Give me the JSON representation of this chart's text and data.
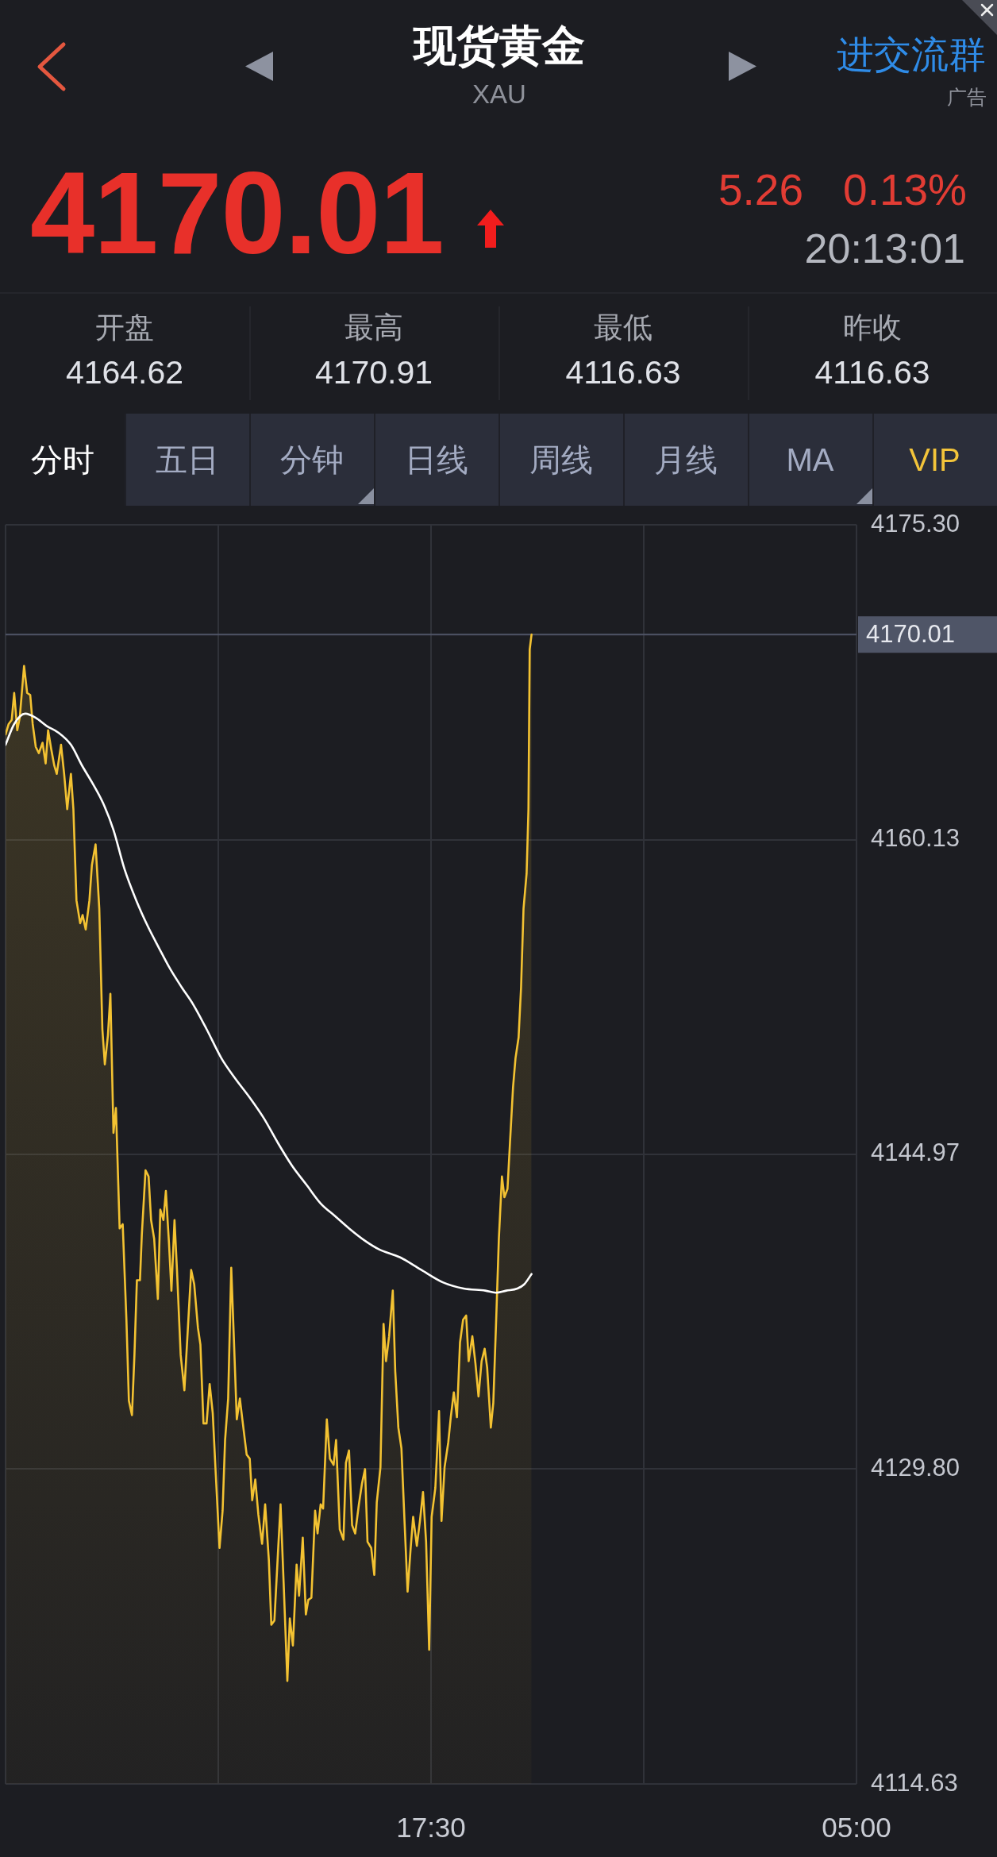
{
  "chart_data": {
    "type": "area",
    "title": "现货黄金",
    "subtitle": "XAU",
    "series": [
      {
        "color": "#f3c232",
        "x": [
          "--01-01T06:00",
          "--01-01T06:05",
          "--01-01T06:10",
          "--01-01T06:14",
          "--01-01T06:19",
          "--01-01T06:23",
          "--01-01T06:30",
          "--01-01T06:35",
          "--01-01T06:40",
          "--01-01T06:44",
          "--01-01T06:49",
          "--01-01T06:54",
          "--01-01T07:00",
          "--01-01T07:05",
          "--01-01T07:09",
          "--01-01T07:14",
          "--01-01T07:19",
          "--01-01T07:23",
          "--01-01T07:30",
          "--01-01T07:35",
          "--01-01T07:40",
          "--01-01T07:46",
          "--01-01T07:50",
          "--01-01T07:55",
          "--01-01T08:01",
          "--01-01T08:05",
          "--01-01T08:10",
          "--01-01T08:16",
          "--01-01T08:20",
          "--01-01T08:26",
          "--01-01T08:32",
          "--01-01T08:37",
          "--01-01T08:41",
          "--01-01T08:46",
          "--01-01T08:50",
          "--01-01T08:55",
          "--01-01T08:59",
          "--01-01T09:05",
          "--01-01T09:10",
          "--01-01T09:16",
          "--01-01T09:20",
          "--01-01T09:25",
          "--01-01T09:29",
          "--01-01T09:33",
          "--01-01T09:38",
          "--01-01T09:41",
          "--01-01T09:47",
          "--01-01T09:52",
          "--01-01T09:56",
          "--01-01T10:01",
          "--01-01T10:07",
          "--01-01T10:11",
          "--01-01T10:16",
          "--01-01T10:20",
          "--01-01T10:25",
          "--01-01T10:29",
          "--01-01T10:34",
          "--01-01T10:38",
          "--01-01T10:44",
          "--01-01T10:50",
          "--01-01T11:01",
          "--01-01T11:06",
          "--01-01T11:12",
          "--01-01T11:16",
          "--01-01T11:21",
          "--01-01T11:26",
          "--01-01T11:31",
          "--01-01T11:36",
          "--01-01T11:41",
          "--01-01T11:47",
          "--01-01T11:52",
          "--01-01T11:56",
          "--01-01T12:01",
          "--01-01T12:06",
          "--01-01T12:10",
          "--01-01T12:15",
          "--01-01T12:20",
          "--01-01T12:24",
          "--01-01T12:31",
          "--01-01T12:36",
          "--01-01T12:40",
          "--01-01T12:45",
          "--01-01T12:50",
          "--01-01T12:56",
          "--01-01T13:01",
          "--01-01T13:07",
          "--01-01T13:11",
          "--01-01T13:16",
          "--01-01T13:22",
          "--01-01T13:26",
          "--01-01T13:31",
          "--01-01T13:37",
          "--01-01T13:41",
          "--01-01T13:46",
          "--01-01T13:52",
          "--01-01T13:56",
          "--01-01T14:02",
          "--01-01T14:07",
          "--01-01T14:11",
          "--01-01T14:16",
          "--01-01T14:22",
          "--01-01T14:26",
          "--01-01T14:31",
          "--01-01T14:35",
          "--01-01T14:41",
          "--01-01T14:46",
          "--01-01T14:52",
          "--01-01T14:56",
          "--01-01T15:02",
          "--01-01T15:08",
          "--01-01T15:12",
          "--01-01T15:17",
          "--01-01T15:22",
          "--01-01T15:27",
          "--01-01T15:33",
          "--01-01T15:38",
          "--01-01T15:43",
          "--01-01T15:47",
          "--01-01T15:53",
          "--01-01T15:58",
          "--01-01T16:02",
          "--01-01T16:08",
          "--01-01T16:13",
          "--01-01T16:17",
          "--01-01T16:22",
          "--01-01T16:28",
          "--01-01T16:32",
          "--01-01T16:37",
          "--01-01T16:42",
          "--01-01T16:47",
          "--01-01T16:52",
          "--01-01T16:57",
          "--01-01T17:01",
          "--01-01T17:07",
          "--01-01T17:12",
          "--01-01T17:17",
          "--01-01T17:22",
          "--01-01T17:27",
          "--01-01T17:31",
          "--01-01T17:37",
          "--01-01T17:43",
          "--01-01T17:47",
          "--01-01T17:52",
          "--01-01T17:58",
          "--01-01T18:02",
          "--01-01T18:07",
          "--01-01T18:12",
          "--01-01T18:17",
          "--01-01T18:22",
          "--01-01T18:27",
          "--01-01T18:31",
          "--01-01T18:37",
          "--01-01T18:42",
          "--01-01T18:47",
          "--01-01T18:52",
          "--01-01T18:57",
          "--01-01T19:01",
          "--01-01T19:07",
          "--01-01T19:11",
          "--01-01T19:16",
          "--01-01T19:20",
          "--01-01T19:25",
          "--01-01T19:29",
          "--01-01T19:34",
          "--01-01T19:38",
          "--01-01T19:43",
          "--01-01T19:47",
          "--01-01T19:52",
          "--01-01T19:56",
          "--01-01T20:00",
          "--01-01T20:05",
          "--01-01T20:08",
          "--01-01T20:10",
          "--01-01T20:13"
        ],
        "values": [
          4165.2,
          4165.7,
          4165.9,
          4167.2,
          4165.4,
          4166.0,
          4168.5,
          4167.2,
          4167.1,
          4165.7,
          4164.6,
          4164.3,
          4164.8,
          4163.8,
          4165.4,
          4164.5,
          4163.7,
          4163.3,
          4164.7,
          4163.3,
          4161.6,
          4163.3,
          4161.6,
          4157.2,
          4156.1,
          4156.5,
          4155.8,
          4157.2,
          4158.9,
          4159.9,
          4156.8,
          4151.0,
          4149.3,
          4150.7,
          4152.7,
          4146.0,
          4147.2,
          4141.4,
          4141.6,
          4137.0,
          4133.1,
          4132.4,
          4135.3,
          4138.9,
          4138.9,
          4141.1,
          4144.2,
          4143.9,
          4141.8,
          4140.9,
          4138.0,
          4142.3,
          4141.8,
          4143.2,
          4140.7,
          4138.4,
          4141.8,
          4139.4,
          4135.3,
          4133.6,
          4139.4,
          4138.7,
          4136.6,
          4135.8,
          4132.0,
          4132.0,
          4133.9,
          4132.5,
          4129.5,
          4126.0,
          4127.8,
          4131.2,
          4133.2,
          4139.5,
          4136.3,
          4132.2,
          4133.2,
          4132.2,
          4130.5,
          4130.3,
          4128.3,
          4129.3,
          4127.6,
          4126.2,
          4128.1,
          4125.4,
          4122.3,
          4122.5,
          4125.9,
          4128.1,
          4124.3,
          4119.6,
          4122.6,
          4121.3,
          4125.2,
          4123.7,
          4126.5,
          4122.8,
          4123.5,
          4123.6,
          4127.8,
          4126.7,
          4128.1,
          4127.9,
          4132.2,
          4130.3,
          4130.0,
          4131.2,
          4126.9,
          4126.4,
          4130.1,
          4130.7,
          4127.1,
          4126.7,
          4128.1,
          4129.1,
          4129.8,
          4126.3,
          4126.0,
          4124.7,
          4128.2,
          4129.9,
          4136.8,
          4135.0,
          4136.2,
          4138.4,
          4134.5,
          4131.8,
          4130.8,
          4127.3,
          4123.9,
          4126.0,
          4127.5,
          4126.1,
          4127.3,
          4128.7,
          4126.3,
          4121.1,
          4127.5,
          4128.9,
          4132.6,
          4127.3,
          4129.9,
          4131.1,
          4132.3,
          4133.5,
          4132.3,
          4135.9,
          4137.0,
          4137.2,
          4135.0,
          4136.2,
          4134.9,
          4133.3,
          4135.0,
          4135.6,
          4134.7,
          4131.8,
          4133.0,
          4137.3,
          4140.9,
          4143.9,
          4142.9,
          4143.3,
          4145.5,
          4148.2,
          4149.6,
          4150.6,
          4153.0,
          4156.8,
          4158.5,
          4161.6,
          4169.3,
          4170.01
        ]
      },
      {
        "type": "line",
        "color": "#ffffff",
        "x": [
          "--01-01T06:00",
          "--01-01T06:14",
          "--01-01T06:32",
          "--01-01T06:49",
          "--01-01T07:07",
          "--01-01T07:25",
          "--01-01T07:46",
          "--01-01T08:04",
          "--01-01T08:20",
          "--01-01T08:38",
          "--01-01T08:55",
          "--01-01T09:13",
          "--01-01T09:32",
          "--01-01T09:50",
          "--01-01T10:09",
          "--01-01T10:27",
          "--01-01T10:46",
          "--01-01T11:04",
          "--01-01T11:26",
          "--01-01T11:50",
          "--01-01T12:13",
          "--01-01T12:36",
          "--01-01T12:59",
          "--01-01T13:22",
          "--01-01T13:45",
          "--01-01T14:08",
          "--01-01T14:31",
          "--01-01T14:54",
          "--01-01T15:17",
          "--01-01T15:43",
          "--01-01T16:05",
          "--01-01T16:40",
          "--01-01T17:14",
          "--01-01T17:49",
          "--01-01T18:23",
          "--01-01T18:58",
          "--01-01T19:15",
          "--01-01T19:32",
          "--01-01T19:50",
          "--01-01T20:01",
          "--01-01T20:13"
        ],
        "values": [
          4164.7,
          4165.7,
          4166.2,
          4166.0,
          4165.6,
          4165.3,
          4164.7,
          4163.7,
          4162.9,
          4161.9,
          4160.6,
          4158.7,
          4157.2,
          4156.0,
          4154.9,
          4153.9,
          4153.0,
          4152.2,
          4151.0,
          4149.6,
          4148.6,
          4147.7,
          4146.7,
          4145.5,
          4144.4,
          4143.5,
          4142.6,
          4142.0,
          4141.4,
          4140.8,
          4140.4,
          4140.0,
          4139.4,
          4138.8,
          4138.5,
          4138.4,
          4138.3,
          4138.4,
          4138.5,
          4138.7,
          4139.2
        ]
      }
    ],
    "xlim": [
      "--01-01T06:00",
      "--01-02T05:00"
    ],
    "xticks": [
      {
        "value": "--01-01T06:00",
        "label": null
      },
      {
        "value": "--01-01T11:45",
        "label": null
      },
      {
        "value": "--01-01T17:30",
        "label": "17:30"
      },
      {
        "value": "--01-01T23:15",
        "label": null
      },
      {
        "value": "--01-02T05:00",
        "label": "05:00"
      }
    ],
    "ylim": [
      4114.63,
      4175.3
    ],
    "yticks": [
      4114.63,
      {
        "value": 4129.8,
        "label": "4129.80"
      },
      4144.97,
      4160.13,
      {
        "value": 4175.3,
        "label": "4175.30"
      }
    ],
    "grid": true,
    "ref_lines": [
      {
        "axis": "y",
        "value": 4170.01,
        "label": "4170.01",
        "color": "#4f5567"
      }
    ],
    "annotations": [
      "进交流群",
      "广告",
      "4170.01",
      "5.26",
      "0.13%",
      "20:13:01",
      "开盘",
      "4164.62",
      "最高",
      "4170.91",
      "最低",
      "4116.63",
      "昨收",
      "4116.63",
      "分时",
      "五日",
      "分钟",
      "日线",
      "周线",
      "月线",
      "MA",
      "VIP"
    ]
  }
}
